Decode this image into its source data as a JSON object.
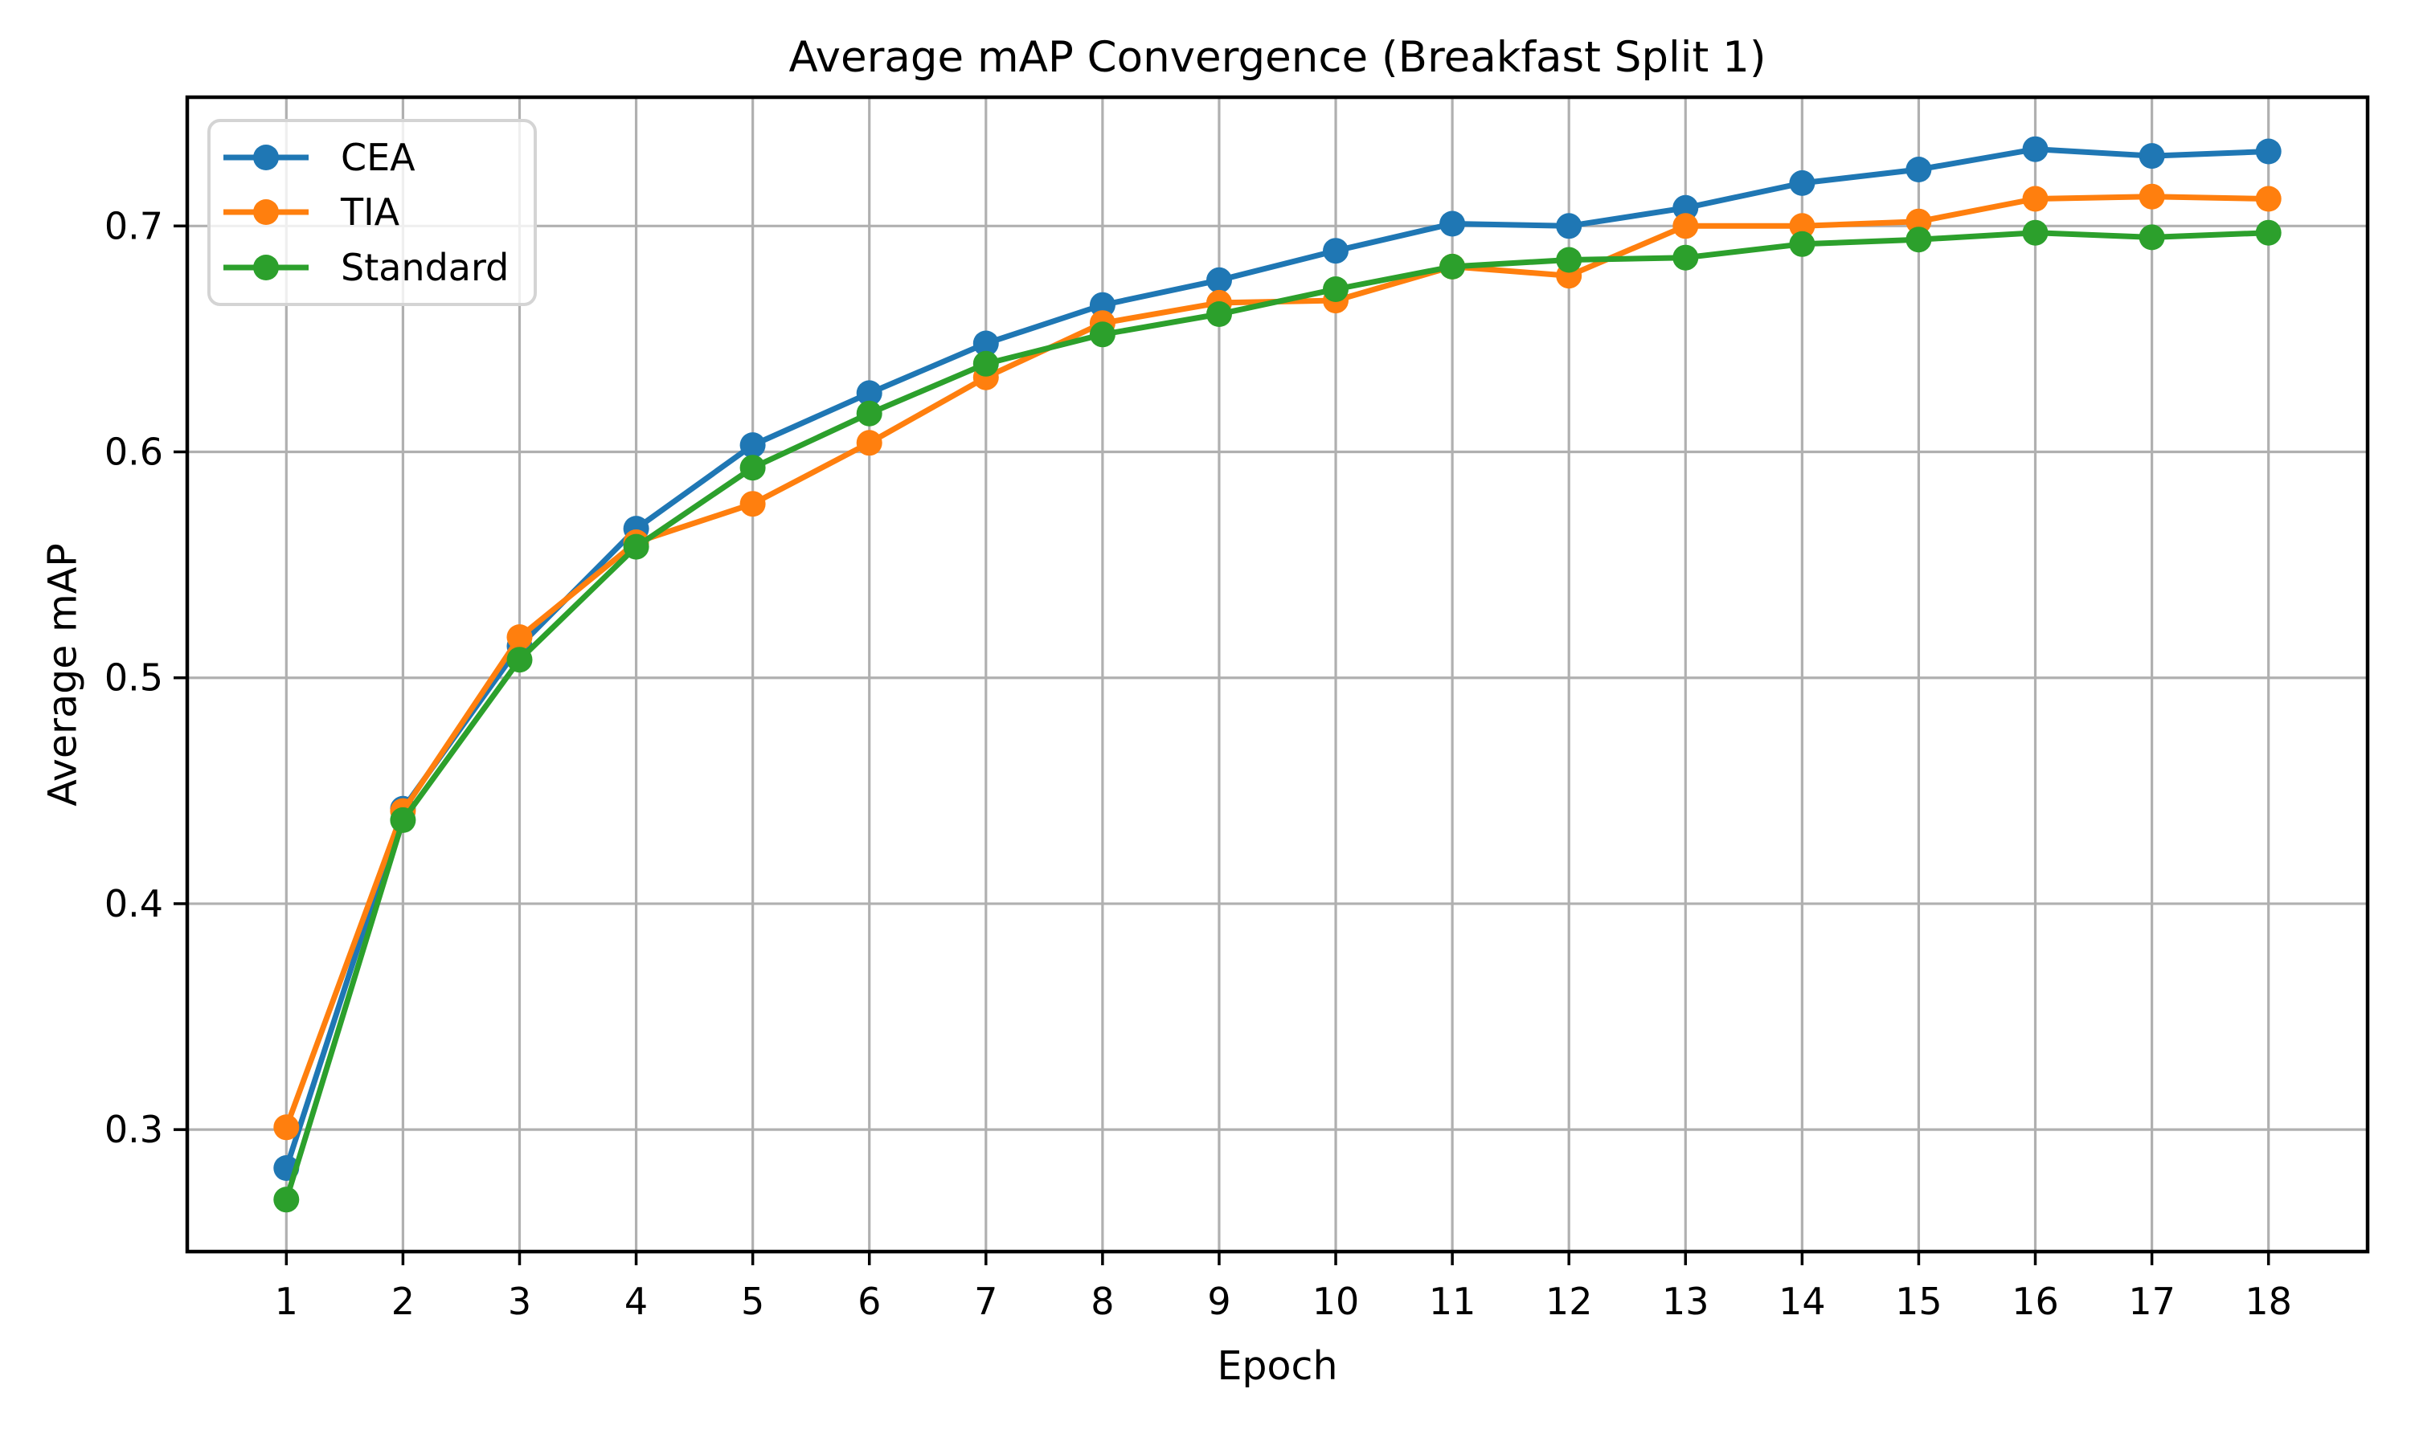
{
  "chart_data": {
    "type": "line",
    "title": "Average mAP Convergence (Breakfast Split 1)",
    "xlabel": "Epoch",
    "ylabel": "Average mAP",
    "x": [
      1,
      2,
      3,
      4,
      5,
      6,
      7,
      8,
      9,
      10,
      11,
      12,
      13,
      14,
      15,
      16,
      17,
      18
    ],
    "x_ticks": [
      1,
      2,
      3,
      4,
      5,
      6,
      7,
      8,
      9,
      10,
      11,
      12,
      13,
      14,
      15,
      16,
      17,
      18
    ],
    "y_ticks": [
      0.3,
      0.4,
      0.5,
      0.6,
      0.7
    ],
    "xlim": [
      0.15,
      18.85
    ],
    "ylim": [
      0.246,
      0.757
    ],
    "grid": true,
    "grid_color": "#b0b0b0",
    "axis_color": "#000000",
    "legend_position": "upper left",
    "series": [
      {
        "name": "CEA",
        "color": "#1f77b4",
        "marker": "circle",
        "values": [
          0.283,
          0.442,
          0.514,
          0.566,
          0.603,
          0.626,
          0.648,
          0.665,
          0.676,
          0.689,
          0.701,
          0.7,
          0.708,
          0.719,
          0.725,
          0.734,
          0.731,
          0.733
        ]
      },
      {
        "name": "TIA",
        "color": "#ff7f0e",
        "marker": "circle",
        "values": [
          0.301,
          0.441,
          0.518,
          0.56,
          0.577,
          0.604,
          0.633,
          0.657,
          0.666,
          0.667,
          0.682,
          0.678,
          0.7,
          0.7,
          0.702,
          0.712,
          0.713,
          0.712
        ]
      },
      {
        "name": "Standard",
        "color": "#2ca02c",
        "marker": "circle",
        "values": [
          0.269,
          0.437,
          0.508,
          0.558,
          0.593,
          0.617,
          0.639,
          0.652,
          0.661,
          0.672,
          0.682,
          0.685,
          0.686,
          0.692,
          0.694,
          0.697,
          0.695,
          0.697
        ]
      }
    ]
  }
}
